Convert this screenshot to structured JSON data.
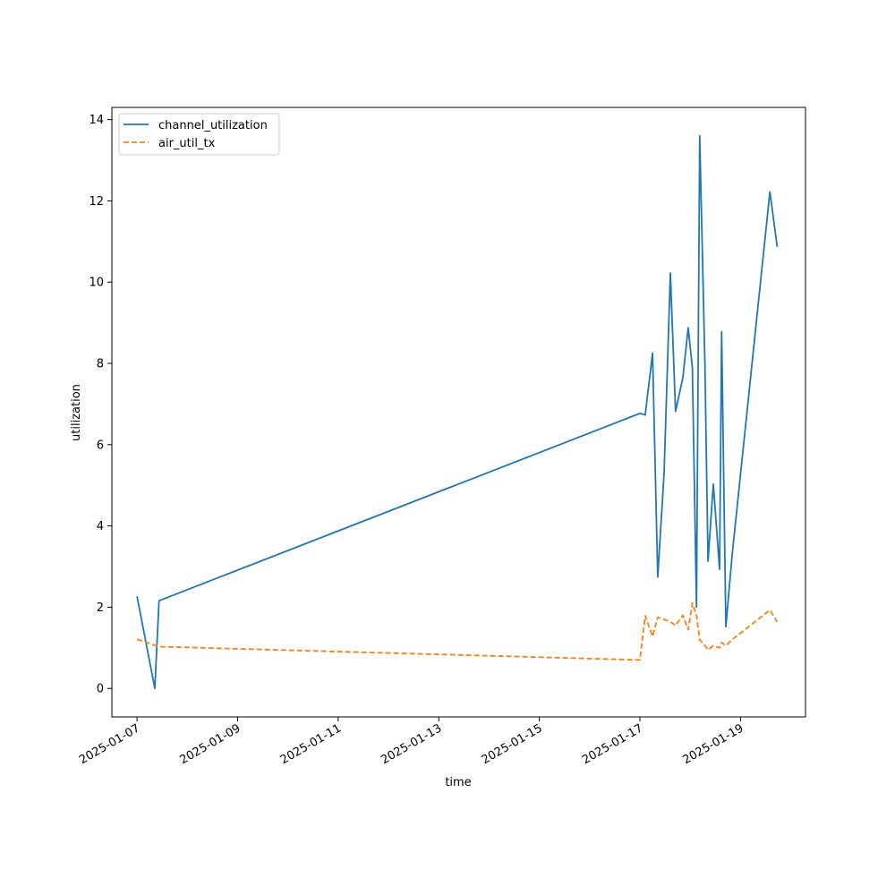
{
  "chart_data": {
    "type": "line",
    "xlabel": "time",
    "ylabel": "utilization",
    "xlim": [
      "2025-01-06T12:00",
      "2025-01-20T07:00"
    ],
    "ylim": [
      -0.7,
      14.3
    ],
    "x_ticks": [
      "2025-01-07",
      "2025-01-09",
      "2025-01-11",
      "2025-01-13",
      "2025-01-15",
      "2025-01-17",
      "2025-01-19"
    ],
    "y_ticks": [
      0,
      2,
      4,
      6,
      8,
      10,
      12,
      14
    ],
    "legend_position": "top-left",
    "grid": false,
    "series": [
      {
        "name": "channel_utilization",
        "color": "#1f77b4",
        "style": "solid",
        "points": [
          [
            "2025-01-07T00:00",
            2.27
          ],
          [
            "2025-01-07T08:30",
            0.0
          ],
          [
            "2025-01-07T10:30",
            2.16
          ],
          [
            "2025-01-17T00:00",
            6.77
          ],
          [
            "2025-01-17T02:30",
            6.73
          ],
          [
            "2025-01-17T06:00",
            8.25
          ],
          [
            "2025-01-17T08:30",
            2.74
          ],
          [
            "2025-01-17T11:30",
            5.3
          ],
          [
            "2025-01-17T14:30",
            10.22
          ],
          [
            "2025-01-17T17:00",
            6.82
          ],
          [
            "2025-01-17T20:30",
            7.65
          ],
          [
            "2025-01-17T23:00",
            8.88
          ],
          [
            "2025-01-18T01:00",
            7.9
          ],
          [
            "2025-01-18T03:00",
            2.0
          ],
          [
            "2025-01-18T04:30",
            13.6
          ],
          [
            "2025-01-18T07:00",
            8.0
          ],
          [
            "2025-01-18T08:30",
            3.13
          ],
          [
            "2025-01-18T11:00",
            5.03
          ],
          [
            "2025-01-18T14:00",
            2.93
          ],
          [
            "2025-01-18T15:00",
            8.78
          ],
          [
            "2025-01-18T17:00",
            1.52
          ],
          [
            "2025-01-18T20:00",
            3.3
          ],
          [
            "2025-01-19T14:00",
            12.22
          ],
          [
            "2025-01-19T17:30",
            10.87
          ]
        ]
      },
      {
        "name": "air_util_tx",
        "color": "#ff7f0e",
        "style": "dashed",
        "points": [
          [
            "2025-01-07T00:00",
            1.21
          ],
          [
            "2025-01-07T10:30",
            1.03
          ],
          [
            "2025-01-17T00:00",
            0.7
          ],
          [
            "2025-01-17T02:30",
            1.79
          ],
          [
            "2025-01-17T06:00",
            1.28
          ],
          [
            "2025-01-17T08:30",
            1.75
          ],
          [
            "2025-01-17T11:30",
            1.7
          ],
          [
            "2025-01-17T14:30",
            1.64
          ],
          [
            "2025-01-17T17:00",
            1.55
          ],
          [
            "2025-01-17T20:30",
            1.8
          ],
          [
            "2025-01-17T23:00",
            1.45
          ],
          [
            "2025-01-18T01:00",
            2.1
          ],
          [
            "2025-01-18T03:00",
            1.8
          ],
          [
            "2025-01-18T04:30",
            1.2
          ],
          [
            "2025-01-18T07:00",
            1.05
          ],
          [
            "2025-01-18T08:30",
            0.95
          ],
          [
            "2025-01-18T11:00",
            1.05
          ],
          [
            "2025-01-18T14:00",
            1.0
          ],
          [
            "2025-01-18T15:00",
            1.13
          ],
          [
            "2025-01-18T17:00",
            1.05
          ],
          [
            "2025-01-18T20:00",
            1.2
          ],
          [
            "2025-01-19T14:00",
            1.93
          ],
          [
            "2025-01-19T17:30",
            1.64
          ]
        ]
      }
    ]
  }
}
